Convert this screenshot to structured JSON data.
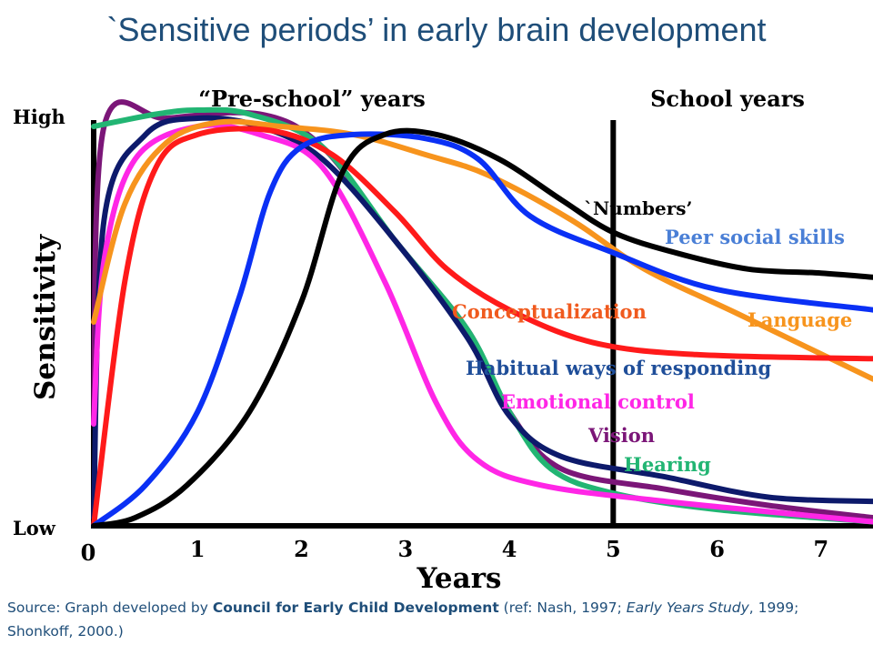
{
  "title": "`Sensitive periods’ in early brain development",
  "source": {
    "prefix": "Source: Graph developed by ",
    "org": "Council for Early Child Development",
    "mid1": " (ref: Nash, 1997; ",
    "book": "Early Years Study",
    "mid2": ", 1999; Shonkoff, 2000.)"
  },
  "chart_data": {
    "type": "line",
    "xlabel": "Years",
    "ylabel": "Sensitivity",
    "y_levels": {
      "high": "High",
      "low": "Low"
    },
    "y_range": [
      0,
      1
    ],
    "x_range": [
      0,
      7.5
    ],
    "x_ticks": [
      0,
      1,
      2,
      3,
      4,
      5,
      6,
      7
    ],
    "x_tick_labels": [
      "0",
      "1",
      "2",
      "3",
      "4",
      "5",
      "6",
      "7"
    ],
    "divider_x": 5,
    "periods": [
      "“Pre-school” years",
      "School years"
    ],
    "series": [
      {
        "name": "Vision",
        "color": "#7b1678",
        "points": [
          [
            0,
            0.25
          ],
          [
            0.1,
            0.98
          ],
          [
            0.7,
            1.0
          ],
          [
            1.6,
            1.01
          ],
          [
            2.2,
            0.93
          ],
          [
            2.9,
            0.7
          ],
          [
            3.6,
            0.48
          ],
          [
            4.0,
            0.28
          ],
          [
            4.5,
            0.14
          ],
          [
            5.5,
            0.09
          ],
          [
            6.5,
            0.05
          ],
          [
            7.5,
            0.02
          ]
        ]
      },
      {
        "name": "Hearing",
        "color": "#22b573",
        "points": [
          [
            0,
            0.98
          ],
          [
            0.6,
            1.01
          ],
          [
            1.0,
            1.02
          ],
          [
            1.5,
            1.01
          ],
          [
            2.2,
            0.93
          ],
          [
            2.9,
            0.7
          ],
          [
            3.6,
            0.48
          ],
          [
            4.0,
            0.28
          ],
          [
            4.4,
            0.14
          ],
          [
            5.0,
            0.08
          ],
          [
            6.0,
            0.04
          ],
          [
            7.5,
            0.01
          ]
        ]
      },
      {
        "name": "Habitual ways of responding",
        "color": "#0d1a6b",
        "points": [
          [
            0,
            0.02
          ],
          [
            0.1,
            0.75
          ],
          [
            0.5,
            0.96
          ],
          [
            1.0,
            1.0
          ],
          [
            1.6,
            0.98
          ],
          [
            2.2,
            0.9
          ],
          [
            2.9,
            0.7
          ],
          [
            3.6,
            0.46
          ],
          [
            4.0,
            0.27
          ],
          [
            4.5,
            0.17
          ],
          [
            5.5,
            0.12
          ],
          [
            6.5,
            0.07
          ],
          [
            7.5,
            0.06
          ]
        ]
      },
      {
        "name": "Emotional control",
        "color": "#ff26e6",
        "points": [
          [
            0,
            0.25
          ],
          [
            0.1,
            0.65
          ],
          [
            0.4,
            0.9
          ],
          [
            1.0,
            0.98
          ],
          [
            1.6,
            0.96
          ],
          [
            2.2,
            0.88
          ],
          [
            2.8,
            0.6
          ],
          [
            3.3,
            0.3
          ],
          [
            3.7,
            0.16
          ],
          [
            4.3,
            0.1
          ],
          [
            5.5,
            0.06
          ],
          [
            7.5,
            0.01
          ]
        ]
      },
      {
        "name": "Language",
        "color": "#f7941d",
        "points": [
          [
            0,
            0.5
          ],
          [
            0.3,
            0.79
          ],
          [
            0.7,
            0.94
          ],
          [
            1.2,
            0.99
          ],
          [
            1.8,
            0.98
          ],
          [
            2.5,
            0.96
          ],
          [
            3.2,
            0.91
          ],
          [
            3.8,
            0.86
          ],
          [
            4.6,
            0.75
          ],
          [
            5.3,
            0.63
          ],
          [
            6.2,
            0.52
          ],
          [
            7.5,
            0.36
          ]
        ]
      },
      {
        "name": "Conceptualization",
        "color": "#ff1a1a",
        "points": [
          [
            0,
            0.0
          ],
          [
            0.3,
            0.6
          ],
          [
            0.6,
            0.88
          ],
          [
            1.0,
            0.96
          ],
          [
            1.7,
            0.97
          ],
          [
            2.3,
            0.91
          ],
          [
            2.9,
            0.77
          ],
          [
            3.4,
            0.63
          ],
          [
            4.0,
            0.53
          ],
          [
            4.8,
            0.45
          ],
          [
            5.8,
            0.42
          ],
          [
            7.5,
            0.41
          ]
        ]
      },
      {
        "name": "Peer social skills",
        "color": "#0a30f5",
        "points": [
          [
            0,
            0.0
          ],
          [
            0.5,
            0.1
          ],
          [
            1.0,
            0.28
          ],
          [
            1.4,
            0.56
          ],
          [
            1.7,
            0.82
          ],
          [
            2.0,
            0.93
          ],
          [
            2.5,
            0.96
          ],
          [
            3.2,
            0.95
          ],
          [
            3.7,
            0.9
          ],
          [
            4.2,
            0.76
          ],
          [
            5.0,
            0.67
          ],
          [
            6.0,
            0.58
          ],
          [
            7.5,
            0.53
          ]
        ]
      },
      {
        "name": "`Numbers’",
        "color": "#000000",
        "points": [
          [
            0,
            0.0
          ],
          [
            0.4,
            0.02
          ],
          [
            0.9,
            0.1
          ],
          [
            1.5,
            0.28
          ],
          [
            2.0,
            0.55
          ],
          [
            2.4,
            0.87
          ],
          [
            2.8,
            0.96
          ],
          [
            3.3,
            0.96
          ],
          [
            3.9,
            0.9
          ],
          [
            4.5,
            0.8
          ],
          [
            5.0,
            0.72
          ],
          [
            5.6,
            0.67
          ],
          [
            6.3,
            0.63
          ],
          [
            7.0,
            0.62
          ],
          [
            7.5,
            0.61
          ]
        ]
      }
    ],
    "labels": [
      {
        "text": "`Numbers’",
        "color": "#000000"
      },
      {
        "text": "Peer social skills",
        "color": "#4a7fd6"
      },
      {
        "text": "Conceptualization",
        "color": "#f05a1e"
      },
      {
        "text": "Language",
        "color": "#f7941d"
      },
      {
        "text": "Habitual ways of responding",
        "color": "#1f4e99"
      },
      {
        "text": "Emotional control",
        "color": "#ff26e6"
      },
      {
        "text": "Vision",
        "color": "#7b1678"
      },
      {
        "text": "Hearing",
        "color": "#22b573"
      }
    ]
  }
}
